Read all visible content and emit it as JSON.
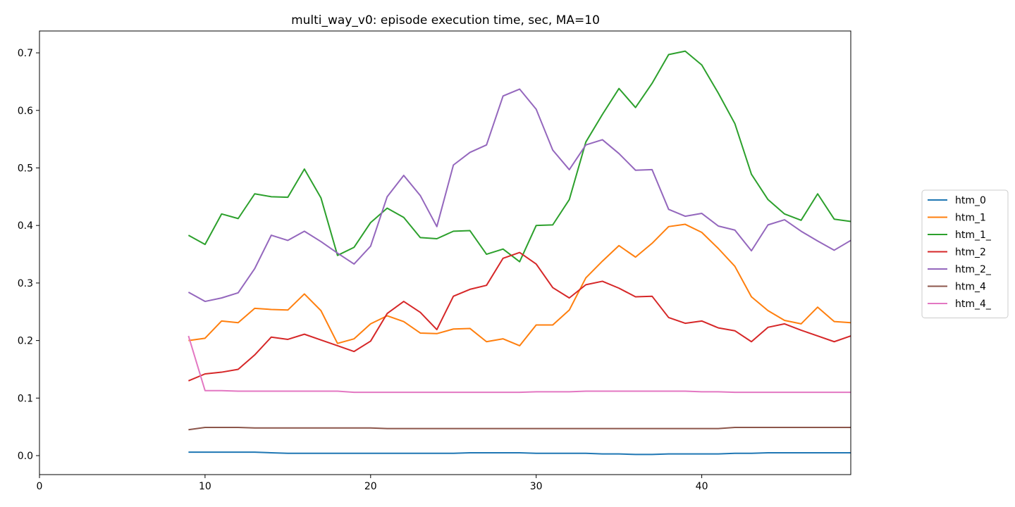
{
  "chart_data": {
    "type": "line",
    "title": "multi_way_v0: episode execution time, sec, MA=10",
    "xlabel": "",
    "ylabel": "",
    "xlim": [
      0,
      49
    ],
    "ylim": [
      -0.033,
      0.738
    ],
    "xticks": [
      0,
      10,
      20,
      30,
      40
    ],
    "yticks": [
      0.0,
      0.1,
      0.2,
      0.3,
      0.4,
      0.5,
      0.6,
      0.7
    ],
    "grid": false,
    "legend_placement": "right",
    "x": [
      9,
      10,
      11,
      12,
      13,
      14,
      15,
      16,
      17,
      18,
      19,
      20,
      21,
      22,
      23,
      24,
      25,
      26,
      27,
      28,
      29,
      30,
      31,
      32,
      33,
      34,
      35,
      36,
      37,
      38,
      39,
      40,
      41,
      42,
      43,
      44,
      45,
      46,
      47,
      48,
      49
    ],
    "series": [
      {
        "name": "htm_0",
        "color": "#1f77b4",
        "values": [
          0.006,
          0.006,
          0.006,
          0.006,
          0.006,
          0.005,
          0.004,
          0.004,
          0.004,
          0.004,
          0.004,
          0.004,
          0.004,
          0.004,
          0.004,
          0.004,
          0.004,
          0.005,
          0.005,
          0.005,
          0.005,
          0.004,
          0.004,
          0.004,
          0.004,
          0.003,
          0.003,
          0.002,
          0.002,
          0.003,
          0.003,
          0.003,
          0.003,
          0.004,
          0.004,
          0.005,
          0.005,
          0.005,
          0.005,
          0.005,
          0.005
        ]
      },
      {
        "name": "htm_1",
        "color": "#ff7f0e",
        "values": [
          0.2,
          0.204,
          0.234,
          0.231,
          0.256,
          0.254,
          0.253,
          0.281,
          0.252,
          0.195,
          0.203,
          0.229,
          0.243,
          0.233,
          0.213,
          0.212,
          0.22,
          0.221,
          0.198,
          0.203,
          0.191,
          0.227,
          0.227,
          0.253,
          0.309,
          0.338,
          0.365,
          0.345,
          0.369,
          0.398,
          0.402,
          0.388,
          0.36,
          0.329,
          0.276,
          0.252,
          0.235,
          0.229,
          0.258,
          0.233,
          0.231
        ]
      },
      {
        "name": "htm_1_",
        "color": "#2ca02c",
        "values": [
          0.383,
          0.367,
          0.42,
          0.412,
          0.455,
          0.45,
          0.449,
          0.498,
          0.448,
          0.348,
          0.362,
          0.405,
          0.43,
          0.414,
          0.379,
          0.377,
          0.39,
          0.391,
          0.35,
          0.359,
          0.337,
          0.4,
          0.401,
          0.445,
          0.545,
          0.593,
          0.638,
          0.605,
          0.647,
          0.697,
          0.703,
          0.679,
          0.63,
          0.577,
          0.489,
          0.445,
          0.42,
          0.409,
          0.455,
          0.411,
          0.407
        ]
      },
      {
        "name": "htm_2",
        "color": "#d62728",
        "values": [
          0.13,
          0.142,
          0.145,
          0.15,
          0.175,
          0.206,
          0.202,
          0.211,
          0.201,
          0.191,
          0.181,
          0.199,
          0.247,
          0.268,
          0.249,
          0.219,
          0.277,
          0.289,
          0.296,
          0.343,
          0.353,
          0.333,
          0.292,
          0.274,
          0.297,
          0.303,
          0.291,
          0.276,
          0.277,
          0.24,
          0.23,
          0.234,
          0.222,
          0.217,
          0.198,
          0.223,
          0.229,
          0.218,
          0.208,
          0.198,
          0.208
        ]
      },
      {
        "name": "htm_2_",
        "color": "#9467bd",
        "values": [
          0.284,
          0.268,
          0.274,
          0.283,
          0.325,
          0.383,
          0.374,
          0.39,
          0.372,
          0.352,
          0.333,
          0.364,
          0.45,
          0.487,
          0.452,
          0.398,
          0.505,
          0.527,
          0.54,
          0.625,
          0.637,
          0.602,
          0.531,
          0.497,
          0.54,
          0.549,
          0.525,
          0.496,
          0.497,
          0.428,
          0.416,
          0.421,
          0.399,
          0.392,
          0.356,
          0.401,
          0.41,
          0.39,
          0.373,
          0.357,
          0.374
        ]
      },
      {
        "name": "htm_4",
        "color": "#8c564b",
        "values": [
          0.045,
          0.049,
          0.049,
          0.049,
          0.048,
          0.048,
          0.048,
          0.048,
          0.048,
          0.048,
          0.048,
          0.048,
          0.047,
          0.047,
          0.047,
          0.047,
          0.047,
          0.047,
          0.047,
          0.047,
          0.047,
          0.047,
          0.047,
          0.047,
          0.047,
          0.047,
          0.047,
          0.047,
          0.047,
          0.047,
          0.047,
          0.047,
          0.047,
          0.049,
          0.049,
          0.049,
          0.049,
          0.049,
          0.049,
          0.049,
          0.049
        ]
      },
      {
        "name": "htm_4_",
        "color": "#e377c2",
        "values": [
          0.208,
          0.113,
          0.113,
          0.112,
          0.112,
          0.112,
          0.112,
          0.112,
          0.112,
          0.112,
          0.11,
          0.11,
          0.11,
          0.11,
          0.11,
          0.11,
          0.11,
          0.11,
          0.11,
          0.11,
          0.11,
          0.111,
          0.111,
          0.111,
          0.112,
          0.112,
          0.112,
          0.112,
          0.112,
          0.112,
          0.112,
          0.111,
          0.111,
          0.11,
          0.11,
          0.11,
          0.11,
          0.11,
          0.11,
          0.11,
          0.11
        ]
      }
    ]
  }
}
